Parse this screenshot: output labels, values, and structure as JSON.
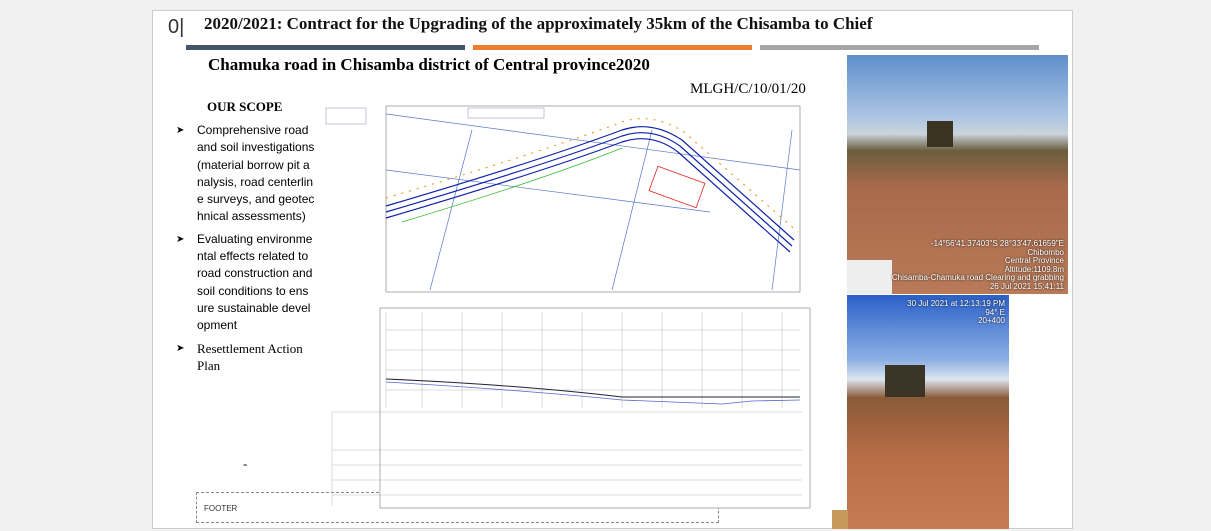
{
  "slide": {
    "number": "0|",
    "title": "2020/2021: Contract for the Upgrading of the approximately 35km of the Chisamba to Chief",
    "subtitle": "Chamuka road in Chisamba district of Central province2020",
    "reference": "MLGH/C/10/01/20"
  },
  "scope": {
    "heading": "OUR SCOPE",
    "items": [
      "Comprehensive road and soil investigations(material borrow pit analysis, road centerline surveys, and geotechnical assessments)",
      "Evaluating environmental effects related to road construction and soil conditions to ensure sustainable development",
      "Resettlement Action Plan"
    ]
  },
  "photos": [
    {
      "caption": [
        "-14°56'41.37403\"S 28°33'47.61659\"E",
        "Chibombo",
        "Central Province",
        "Altitude:1109.8m",
        "Chisamba-Chamuka road Clearing and grabbing",
        "26 Jul 2021 15:41:11"
      ]
    },
    {
      "caption": [
        "30 Jul 2021 at 12:13:19 PM",
        "94° E",
        "20+400"
      ]
    }
  ],
  "marker": "-",
  "footer": "FOOTER"
}
